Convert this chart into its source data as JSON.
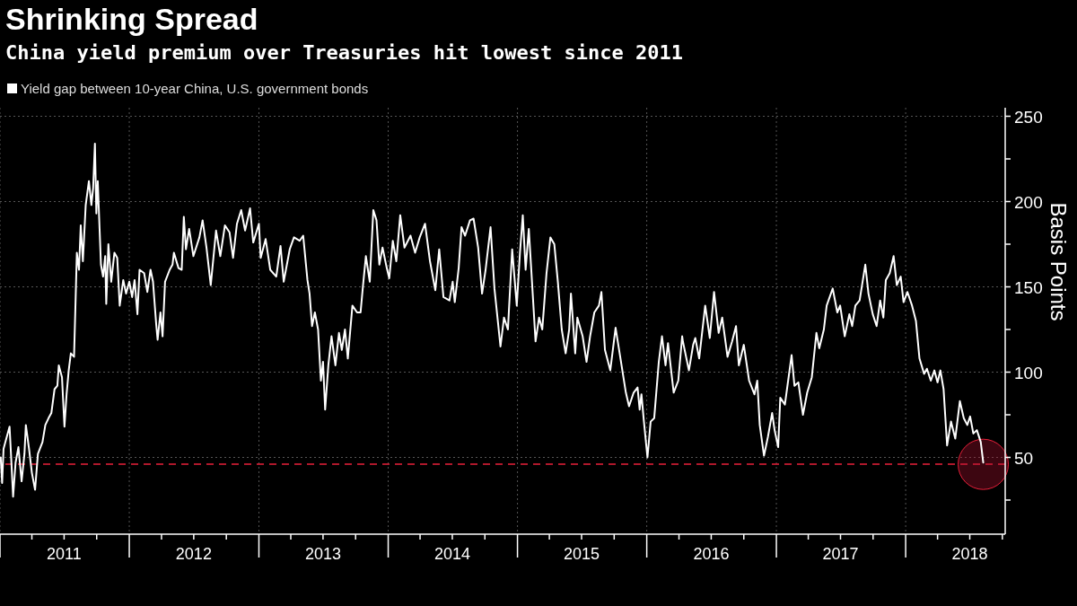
{
  "chart_data": {
    "type": "line",
    "title": "Shrinking Spread",
    "subtitle": "China yield premium over Treasuries hit lowest since 2011",
    "ylabel": "Basis Points",
    "xlim": [
      "2011-01-01",
      "2018-10-09"
    ],
    "xticks": [
      {
        "value": "2011-01-01",
        "label": null
      },
      {
        "value": "2011-04-01",
        "label": null
      },
      {
        "value": "2011-07-01",
        "label": "2011"
      },
      {
        "value": "2011-10-01",
        "label": null
      },
      {
        "value": "2012-01-01",
        "label": null
      },
      {
        "value": "2012-04-01",
        "label": null
      },
      {
        "value": "2012-07-01",
        "label": "2012"
      },
      {
        "value": "2012-10-01",
        "label": null
      },
      {
        "value": "2013-01-01",
        "label": null
      },
      {
        "value": "2013-04-01",
        "label": null
      },
      {
        "value": "2013-07-01",
        "label": "2013"
      },
      {
        "value": "2013-10-01",
        "label": null
      },
      {
        "value": "2014-01-01",
        "label": null
      },
      {
        "value": "2014-04-01",
        "label": null
      },
      {
        "value": "2014-07-01",
        "label": "2014"
      },
      {
        "value": "2014-10-01",
        "label": null
      },
      {
        "value": "2015-01-01",
        "label": null
      },
      {
        "value": "2015-04-01",
        "label": null
      },
      {
        "value": "2015-07-01",
        "label": "2015"
      },
      {
        "value": "2015-10-01",
        "label": null
      },
      {
        "value": "2016-01-01",
        "label": null
      },
      {
        "value": "2016-04-01",
        "label": null
      },
      {
        "value": "2016-07-01",
        "label": "2016"
      },
      {
        "value": "2016-10-01",
        "label": null
      },
      {
        "value": "2017-01-01",
        "label": null
      },
      {
        "value": "2017-04-01",
        "label": null
      },
      {
        "value": "2017-07-01",
        "label": "2017"
      },
      {
        "value": "2017-10-01",
        "label": null
      },
      {
        "value": "2018-01-01",
        "label": null
      },
      {
        "value": "2018-04-01",
        "label": null
      },
      {
        "value": "2018-07-01",
        "label": "2018"
      },
      {
        "value": "2018-10-01",
        "label": null
      }
    ],
    "ylim": [
      5,
      255
    ],
    "yticks": [
      {
        "value": 25,
        "label": null
      },
      50,
      {
        "value": 75,
        "label": null
      },
      100,
      {
        "value": 125,
        "label": null
      },
      150,
      {
        "value": 175,
        "label": null
      },
      200,
      {
        "value": 225,
        "label": null
      },
      250
    ],
    "grid": true,
    "legend": "top left",
    "ref_lines": [
      {
        "axis": "y",
        "value": 46,
        "color": "#e8203a",
        "line_style": "dashed"
      }
    ],
    "series": [
      {
        "name": "Yield gap between 10-year China, U.S. government bonds",
        "color": "#ffffff",
        "x": [
          "2011-01-03",
          "2011-01-07",
          "2011-01-11",
          "2011-01-20",
          "2011-01-28",
          "2011-02-01",
          "2011-02-07",
          "2011-02-14",
          "2011-02-22",
          "2011-03-03",
          "2011-03-11",
          "2011-03-15",
          "2011-03-24",
          "2011-04-01",
          "2011-04-10",
          "2011-04-18",
          "2011-05-01",
          "2011-05-09",
          "2011-05-18",
          "2011-05-26",
          "2011-06-04",
          "2011-06-12",
          "2011-06-16",
          "2011-06-25",
          "2011-07-02",
          "2011-07-08",
          "2011-07-14",
          "2011-07-20",
          "2011-07-29",
          "2011-08-02",
          "2011-08-06",
          "2011-08-12",
          "2011-08-17",
          "2011-08-23",
          "2011-08-31",
          "2011-09-09",
          "2011-09-16",
          "2011-09-21",
          "2011-09-26",
          "2011-09-30",
          "2011-10-04",
          "2011-10-13",
          "2011-10-19",
          "2011-10-25",
          "2011-10-28",
          "2011-11-03",
          "2011-11-11",
          "2011-11-20",
          "2011-11-28",
          "2011-12-05",
          "2011-12-15",
          "2011-12-23",
          "2012-01-01",
          "2012-01-09",
          "2012-01-16",
          "2012-01-24",
          "2012-01-30",
          "2012-02-12",
          "2012-02-21",
          "2012-03-01",
          "2012-03-08",
          "2012-03-17",
          "2012-03-21",
          "2012-03-29",
          "2012-04-04",
          "2012-04-11",
          "2012-04-24",
          "2012-05-02",
          "2012-05-06",
          "2012-05-19",
          "2012-05-28",
          "2012-06-03",
          "2012-06-09",
          "2012-06-18",
          "2012-06-30",
          "2012-07-17",
          "2012-07-26",
          "2012-08-06",
          "2012-08-18",
          "2012-09-02",
          "2012-09-14",
          "2012-09-27",
          "2012-10-10",
          "2012-10-20",
          "2012-10-31",
          "2012-11-12",
          "2012-11-23",
          "2012-12-07",
          "2012-12-16",
          "2013-01-01",
          "2013-01-06",
          "2013-01-20",
          "2013-02-02",
          "2013-02-19",
          "2013-03-03",
          "2013-03-12",
          "2013-03-29",
          "2013-04-10",
          "2013-04-26",
          "2013-05-06",
          "2013-05-18",
          "2013-05-24",
          "2013-05-31",
          "2013-06-08",
          "2013-06-17",
          "2013-06-25",
          "2013-07-01",
          "2013-07-07",
          "2013-07-16",
          "2013-07-25",
          "2013-08-05",
          "2013-08-15",
          "2013-08-23",
          "2013-09-01",
          "2013-09-09",
          "2013-09-22",
          "2013-10-05",
          "2013-10-15",
          "2013-10-22",
          "2013-10-30",
          "2013-11-10",
          "2013-11-20",
          "2013-11-29",
          "2013-12-07",
          "2013-12-16",
          "2013-12-28",
          "2014-01-04",
          "2014-01-14",
          "2014-01-24",
          "2014-02-04",
          "2014-02-16",
          "2014-03-05",
          "2014-03-18",
          "2014-03-31",
          "2014-04-15",
          "2014-04-29",
          "2014-05-14",
          "2014-05-25",
          "2014-06-06",
          "2014-06-23",
          "2014-07-02",
          "2014-07-08",
          "2014-07-19",
          "2014-07-27",
          "2014-08-06",
          "2014-08-20",
          "2014-08-30",
          "2014-09-12",
          "2014-09-23",
          "2014-10-03",
          "2014-10-17",
          "2014-10-28",
          "2014-11-14",
          "2014-11-24",
          "2014-12-05",
          "2014-12-17",
          "2014-12-30",
          "2015-01-08",
          "2015-01-16",
          "2015-01-24",
          "2015-02-02",
          "2015-02-15",
          "2015-02-21",
          "2015-03-03",
          "2015-03-12",
          "2015-03-24",
          "2015-04-04",
          "2015-04-15",
          "2015-04-25",
          "2015-05-06",
          "2015-05-17",
          "2015-05-27",
          "2015-06-01",
          "2015-06-13",
          "2015-06-19",
          "2015-07-04",
          "2015-07-15",
          "2015-07-25",
          "2015-08-06",
          "2015-08-19",
          "2015-08-26",
          "2015-09-05",
          "2015-09-20",
          "2015-10-05",
          "2015-10-18",
          "2015-11-03",
          "2015-11-12",
          "2015-11-25",
          "2015-12-06",
          "2015-12-12",
          "2015-12-17",
          "2015-12-24",
          "2016-01-03",
          "2016-01-12",
          "2016-01-22",
          "2016-02-04",
          "2016-02-13",
          "2016-02-23",
          "2016-03-01",
          "2016-03-17",
          "2016-03-30",
          "2016-04-10",
          "2016-04-12",
          "2016-04-29",
          "2016-05-11",
          "2016-05-17",
          "2016-05-28",
          "2016-06-14",
          "2016-06-27",
          "2016-07-09",
          "2016-07-22",
          "2016-08-01",
          "2016-08-16",
          "2016-08-29",
          "2016-09-09",
          "2016-09-17",
          "2016-10-01",
          "2016-10-16",
          "2016-10-31",
          "2016-11-08",
          "2016-11-15",
          "2016-11-27",
          "2016-12-08",
          "2016-12-20",
          "2016-12-27",
          "2017-01-06",
          "2017-01-12",
          "2017-01-25",
          "2017-02-13",
          "2017-02-21",
          "2017-03-04",
          "2017-03-17",
          "2017-03-29",
          "2017-04-11",
          "2017-04-24",
          "2017-05-02",
          "2017-05-15",
          "2017-05-23",
          "2017-06-09",
          "2017-06-22",
          "2017-06-30",
          "2017-07-13",
          "2017-07-26",
          "2017-08-03",
          "2017-08-12",
          "2017-08-24",
          "2017-09-09",
          "2017-09-18",
          "2017-09-30",
          "2017-10-11",
          "2017-10-21",
          "2017-10-30",
          "2017-11-06",
          "2017-11-17",
          "2017-11-28",
          "2017-12-07",
          "2017-12-18",
          "2017-12-26",
          "2018-01-06",
          "2018-01-19",
          "2018-01-30",
          "2018-02-09",
          "2018-02-22",
          "2018-03-02",
          "2018-03-13",
          "2018-03-23",
          "2018-04-01",
          "2018-04-09",
          "2018-04-18",
          "2018-04-28",
          "2018-05-09",
          "2018-05-21",
          "2018-06-03",
          "2018-06-14",
          "2018-06-24",
          "2018-07-02",
          "2018-07-11",
          "2018-07-21",
          "2018-08-01",
          "2018-08-08"
        ],
        "values": [
          50,
          35,
          55,
          62,
          68,
          52,
          27,
          47,
          56,
          36,
          52,
          69,
          55,
          41,
          31,
          52,
          59,
          69,
          73,
          76,
          90,
          92,
          104,
          97,
          68,
          87,
          101,
          111,
          109,
          139,
          170,
          160,
          186,
          165,
          198,
          212,
          198,
          208,
          234,
          193,
          212,
          163,
          156,
          168,
          140,
          175,
          153,
          170,
          167,
          139,
          154,
          146,
          153,
          144,
          154,
          134,
          160,
          158,
          147,
          160,
          153,
          128,
          119,
          135,
          121,
          153,
          160,
          163,
          170,
          161,
          160,
          191,
          172,
          184,
          168,
          179,
          189,
          173,
          151,
          183,
          168,
          186,
          182,
          167,
          187,
          195,
          183,
          196,
          176,
          187,
          167,
          178,
          160,
          156,
          174,
          153,
          172,
          179,
          177,
          180,
          154,
          146,
          127,
          135,
          125,
          95,
          106,
          78,
          104,
          121,
          104,
          123,
          113,
          125,
          108,
          139,
          135,
          135,
          151,
          168,
          153,
          195,
          189,
          163,
          173,
          161,
          155,
          177,
          165,
          192,
          173,
          180,
          170,
          179,
          187,
          165,
          148,
          172,
          144,
          142,
          153,
          141,
          161,
          185,
          180,
          189,
          190,
          173,
          146,
          160,
          185,
          149,
          115,
          132,
          125,
          172,
          139,
          170,
          192,
          160,
          184,
          139,
          118,
          132,
          125,
          158,
          179,
          175,
          153,
          125,
          111,
          125,
          146,
          111,
          132,
          121,
          106,
          121,
          135,
          139,
          147,
          113,
          101,
          126,
          109,
          88,
          80,
          88,
          91,
          78,
          87,
          71,
          50,
          71,
          73,
          106,
          121,
          104,
          117,
          88,
          95,
          121,
          118,
          101,
          116,
          120,
          108,
          139,
          120,
          147,
          123,
          132,
          109,
          118,
          127,
          104,
          116,
          95,
          87,
          95,
          69,
          51,
          62,
          76,
          66,
          56,
          85,
          81,
          110,
          92,
          94,
          75,
          88,
          97,
          123,
          114,
          125,
          139,
          149,
          135,
          139,
          121,
          134,
          127,
          139,
          142,
          163,
          146,
          134,
          127,
          142,
          132,
          154,
          158,
          168,
          151,
          156,
          141,
          147,
          139,
          130,
          108,
          99,
          102,
          95,
          101,
          94,
          101,
          90,
          57,
          71,
          61,
          83,
          73,
          69,
          74,
          64,
          66,
          59,
          47
        ]
      }
    ]
  }
}
